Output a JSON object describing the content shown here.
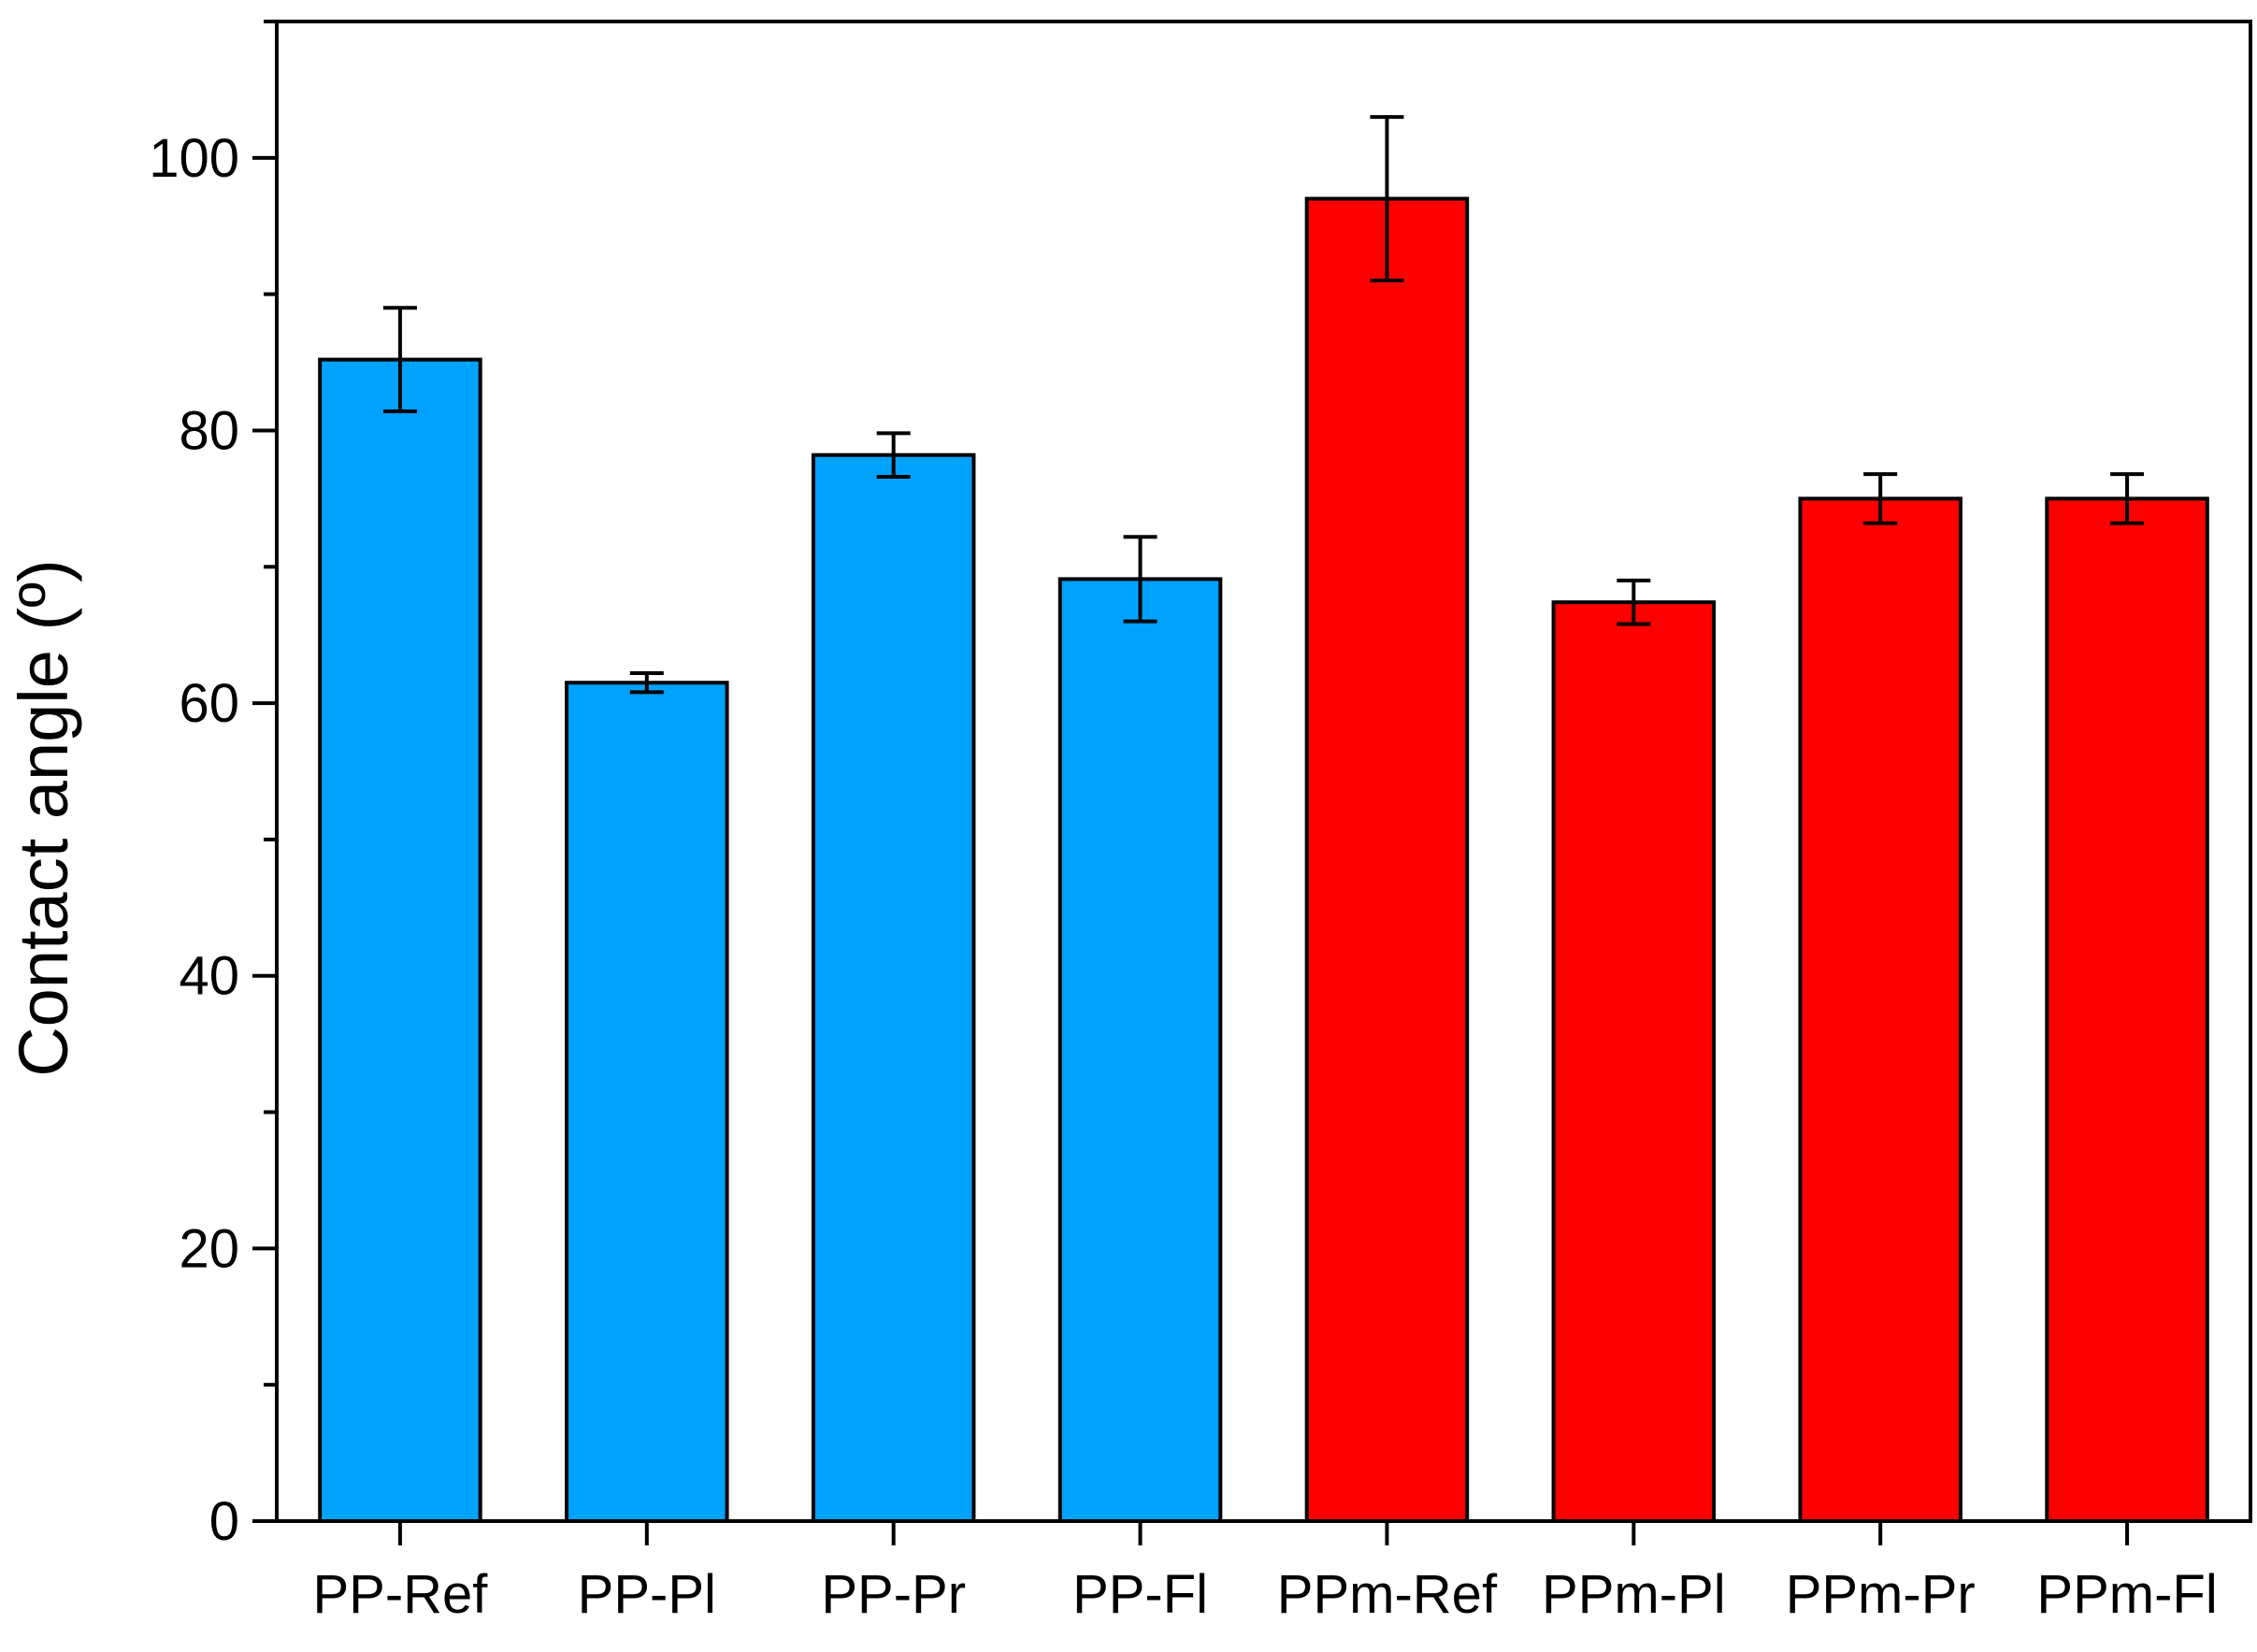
{
  "chart_data": {
    "type": "bar",
    "ylabel": "Contact angle (º)",
    "xlabel": "",
    "ylim": [
      0,
      110
    ],
    "yticks": [
      0,
      20,
      40,
      60,
      80,
      100
    ],
    "yticks_labels": [
      "0",
      "20",
      "40",
      "60",
      "80",
      "100"
    ],
    "y_minor_step": 10,
    "grid": false,
    "categories": [
      "PP-Ref",
      "PP-Pl",
      "PP-Pr",
      "PP-Fl",
      "PPm-Ref",
      "PPm-Pl",
      "PPm-Pr",
      "PPm-Fl"
    ],
    "values": [
      85.2,
      61.5,
      78.2,
      69.1,
      97.0,
      67.4,
      75.0,
      75.0
    ],
    "errors": [
      3.8,
      0.7,
      1.6,
      3.1,
      6.0,
      1.6,
      1.8,
      1.8
    ],
    "bar_colors": [
      "#00a2ff",
      "#00a2ff",
      "#00a2ff",
      "#00a2ff",
      "#ff0000",
      "#ff0000",
      "#ff0000",
      "#ff0000"
    ]
  }
}
